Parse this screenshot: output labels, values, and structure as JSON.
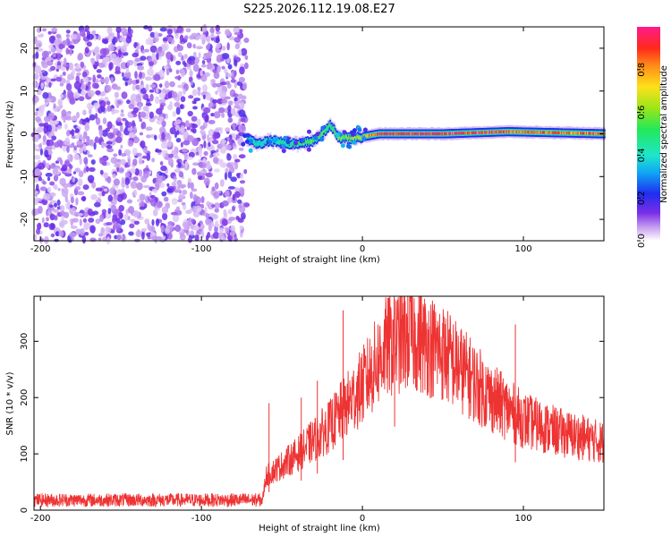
{
  "title": "S225.2026.112.19.08.E27",
  "chart_data": [
    {
      "type": "heatmap",
      "xlabel": "Height of straight line (km)",
      "ylabel": "Frequency (Hz)",
      "xlim": [
        -204,
        150
      ],
      "ylim": [
        -25,
        25
      ],
      "xticks": [
        -200,
        -100,
        0,
        100
      ],
      "yticks": [
        -20,
        -10,
        0,
        10,
        20
      ],
      "noise_region": {
        "x_from": -204,
        "x_to": -72,
        "amplitude_range": [
          0.0,
          0.25
        ]
      },
      "ridge_points": [
        {
          "x": -72,
          "freq": -1.0,
          "amp": 0.35
        },
        {
          "x": -65,
          "freq": -2.5,
          "amp": 0.4
        },
        {
          "x": -58,
          "freq": -1.5,
          "amp": 0.4
        },
        {
          "x": -50,
          "freq": -2.0,
          "amp": 0.45
        },
        {
          "x": -40,
          "freq": -2.5,
          "amp": 0.55
        },
        {
          "x": -30,
          "freq": -1.5,
          "amp": 0.6
        },
        {
          "x": -20,
          "freq": 2.0,
          "amp": 0.5
        },
        {
          "x": -15,
          "freq": -1.0,
          "amp": 0.6
        },
        {
          "x": -5,
          "freq": -1.0,
          "amp": 0.65
        },
        {
          "x": 10,
          "freq": 0.0,
          "amp": 0.9
        },
        {
          "x": 50,
          "freq": 0.0,
          "amp": 0.95
        },
        {
          "x": 90,
          "freq": 0.5,
          "amp": 0.85
        },
        {
          "x": 150,
          "freq": 0.0,
          "amp": 0.85
        }
      ],
      "colorbar": {
        "label": "Normalized spectral amplitude",
        "range": [
          0,
          1
        ],
        "ticks": [
          "0.0",
          "0.2",
          "0.4",
          "0.6",
          "0.8"
        ]
      }
    },
    {
      "type": "line",
      "xlabel": "Height of straight line (km)",
      "ylabel": "SNR (10 * v/v)",
      "xlim": [
        -204,
        150
      ],
      "ylim": [
        0,
        380
      ],
      "xticks": [
        -200,
        -100,
        0,
        100
      ],
      "yticks": [
        0,
        100,
        200,
        300
      ],
      "color": "#ee3333",
      "envelope": [
        {
          "x": -204,
          "y": 18
        },
        {
          "x": -120,
          "y": 18
        },
        {
          "x": -62,
          "y": 18
        },
        {
          "x": -60,
          "y": 60
        },
        {
          "x": -40,
          "y": 100
        },
        {
          "x": -20,
          "y": 150
        },
        {
          "x": 0,
          "y": 220
        },
        {
          "x": 15,
          "y": 290
        },
        {
          "x": 30,
          "y": 310
        },
        {
          "x": 50,
          "y": 280
        },
        {
          "x": 80,
          "y": 200
        },
        {
          "x": 100,
          "y": 160
        },
        {
          "x": 120,
          "y": 140
        },
        {
          "x": 150,
          "y": 120
        }
      ],
      "spikes": [
        {
          "x": -58,
          "y": 190
        },
        {
          "x": -38,
          "y": 200
        },
        {
          "x": -28,
          "y": 230
        },
        {
          "x": -12,
          "y": 355
        },
        {
          "x": 20,
          "y": 375
        },
        {
          "x": 95,
          "y": 330
        }
      ]
    }
  ]
}
